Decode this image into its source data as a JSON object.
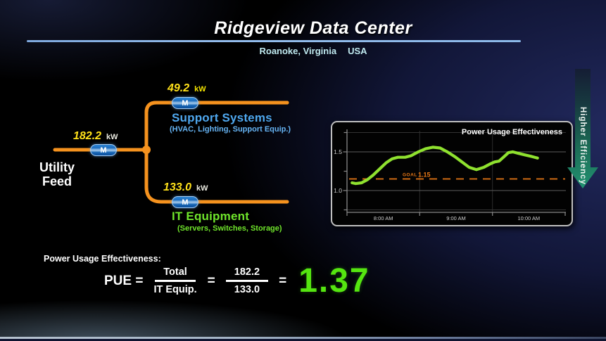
{
  "header": {
    "title": "Ridgeview Data Center",
    "location": "Roanoke, Virginia",
    "country": "USA"
  },
  "colors": {
    "power_line_orange": "#f5921e",
    "value_yellow": "#ffe11a",
    "support_blue": "#4fa8f0",
    "it_green": "#6fe52b",
    "trend_green": "#8fe12f",
    "goal_orange": "#e87816",
    "result_green": "#55e510",
    "title_rule_blue": "#8cb9e9",
    "meter_blue": "#1a6cbe"
  },
  "diagram": {
    "utility_label": "Utility\nFeed",
    "meter_label": "M",
    "utility": {
      "value": "182.2",
      "unit": "kW"
    },
    "support": {
      "value": "49.2",
      "unit": "kW",
      "label": "Support Systems",
      "sublabel": "(HVAC, Lighting, Support Equip.)"
    },
    "it": {
      "value": "133.0",
      "unit": "kW",
      "label": "IT Equipment",
      "sublabel": "(Servers, Switches, Storage)"
    }
  },
  "chart_data": {
    "type": "line",
    "title": "Power Usage Effectiveness",
    "x_tick_labels": [
      "8:00 AM",
      "9:00 AM",
      "10:00 AM"
    ],
    "x_tick_hours": [
      8,
      9,
      10
    ],
    "x_range_hours": [
      7.5,
      10.5
    ],
    "y_tick_labels": [
      "1.0",
      "1.5"
    ],
    "y_ticks": [
      1.0,
      1.5
    ],
    "y_minor_ticks": [
      0.75,
      1.25,
      1.75
    ],
    "ylim": [
      0.7,
      1.8
    ],
    "grid": true,
    "goal": {
      "label": "GOAL",
      "value": "1.15",
      "y": 1.15
    },
    "series": [
      {
        "name": "PUE",
        "color": "#8fe12f",
        "points": [
          [
            7.57,
            1.1
          ],
          [
            7.62,
            1.09
          ],
          [
            7.7,
            1.1
          ],
          [
            7.78,
            1.14
          ],
          [
            7.86,
            1.2
          ],
          [
            7.95,
            1.28
          ],
          [
            8.04,
            1.36
          ],
          [
            8.12,
            1.41
          ],
          [
            8.2,
            1.43
          ],
          [
            8.3,
            1.43
          ],
          [
            8.38,
            1.45
          ],
          [
            8.48,
            1.5
          ],
          [
            8.58,
            1.54
          ],
          [
            8.68,
            1.56
          ],
          [
            8.78,
            1.55
          ],
          [
            8.88,
            1.5
          ],
          [
            8.98,
            1.44
          ],
          [
            9.08,
            1.37
          ],
          [
            9.18,
            1.3
          ],
          [
            9.28,
            1.27
          ],
          [
            9.38,
            1.3
          ],
          [
            9.46,
            1.34
          ],
          [
            9.53,
            1.37
          ],
          [
            9.59,
            1.38
          ],
          [
            9.65,
            1.43
          ],
          [
            9.72,
            1.49
          ],
          [
            9.78,
            1.5
          ],
          [
            9.86,
            1.48
          ],
          [
            9.95,
            1.46
          ],
          [
            10.04,
            1.44
          ],
          [
            10.12,
            1.42
          ]
        ]
      }
    ]
  },
  "efficiency_arrow": {
    "label": "Higher Efficiency"
  },
  "formula": {
    "heading": "Power Usage Effectiveness:",
    "lhs": "PUE =",
    "eq": "=",
    "numerator": "Total",
    "denominator": "IT Equip.",
    "value_numerator": "182.2",
    "value_denominator": "133.0",
    "result": "1.37"
  }
}
